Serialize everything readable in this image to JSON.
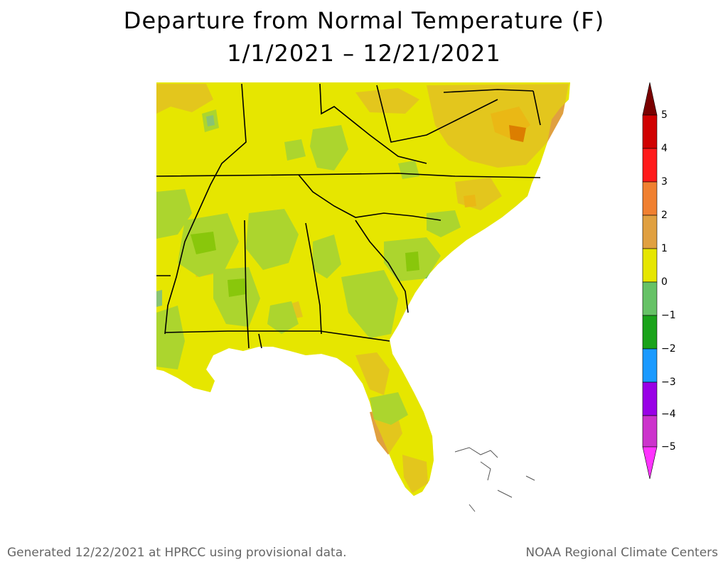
{
  "title_line1": "Departure from Normal Temperature (F)",
  "title_line2": "1/1/2021 – 12/21/2021",
  "legend": {
    "ticks": [
      "5",
      "4",
      "3",
      "2",
      "1",
      "0",
      "−1",
      "−2",
      "−3",
      "−4",
      "−5"
    ],
    "colors": [
      "#7a0000",
      "#d00000",
      "#ff1a1a",
      "#f08030",
      "#e0a040",
      "#e6e600",
      "#66c266",
      "#1aa31a",
      "#1a9aff",
      "#9900e6",
      "#cc33cc",
      "#ff33ff"
    ]
  },
  "map_colors": {
    "ocean": "#ffffff",
    "land_base": "#e6e600",
    "warm1": "#e0a040",
    "warm2": "#f08030",
    "warm3": "#d00000",
    "cool1": "#66c266",
    "cool2": "#1aa31a",
    "cool3": "#1a9aff",
    "county_line": "#333333",
    "state_line": "#000000"
  },
  "footer_left": "Generated 12/22/2021 at HPRCC using provisional data.",
  "footer_right": "NOAA Regional Climate Centers"
}
